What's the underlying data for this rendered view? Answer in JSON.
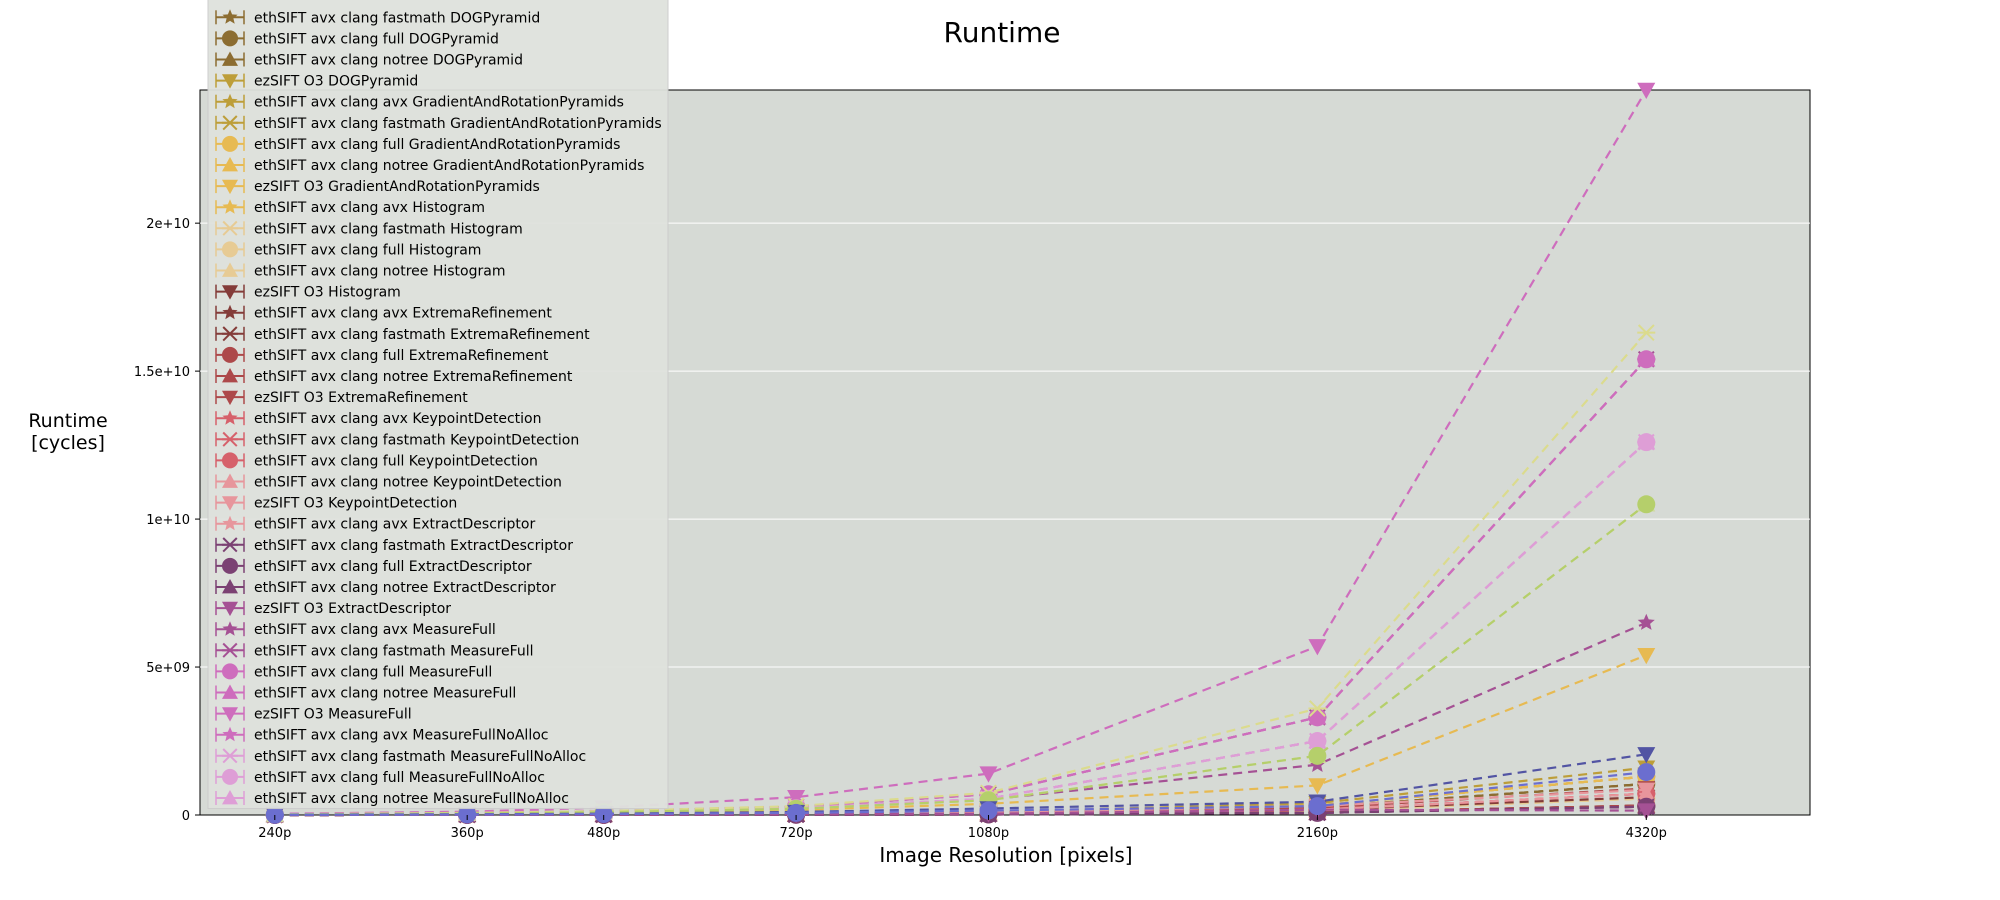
{
  "chart_data": {
    "type": "line",
    "title": "Runtime",
    "xlabel": "Image Resolution [pixels]",
    "ylabel_lines": [
      "Runtime",
      "[cycles]"
    ],
    "x_categories": [
      "240p",
      "360p",
      "480p",
      "720p",
      "1080p",
      "2160p",
      "4320p"
    ],
    "x_scale": "log",
    "x_values": [
      240,
      360,
      480,
      720,
      1080,
      2160,
      4320
    ],
    "y_ticks": [
      0,
      5000000000,
      10000000000,
      15000000000,
      20000000000
    ],
    "y_tick_labels": [
      "0",
      "5e+09",
      "1e+10",
      "1.5e+10",
      "2e+10"
    ],
    "ylim": [
      0,
      24500000000
    ],
    "grid": true,
    "legend_position": "upper-left",
    "legend_partially_cut_off_at_top": true,
    "series": [
      {
        "name": "ethSIFT avx clang fastmath DOGPyramid",
        "color": "#8c6d31",
        "marker": "star",
        "values": [
          3000000,
          7000000,
          13000000,
          30000000,
          65000000,
          260000000,
          1050000000
        ]
      },
      {
        "name": "ethSIFT avx clang full DOGPyramid",
        "color": "#8c6d31",
        "marker": "circle",
        "values": [
          3000000,
          7000000,
          13000000,
          30000000,
          65000000,
          260000000,
          1050000000
        ]
      },
      {
        "name": "ethSIFT avx clang notree DOGPyramid",
        "color": "#8c6d31",
        "marker": "triangle-up",
        "values": [
          3000000,
          7000000,
          13000000,
          30000000,
          65000000,
          260000000,
          1050000000
        ]
      },
      {
        "name": "ezSIFT O3 DOGPyramid",
        "color": "#bd9e39",
        "marker": "triangle-down",
        "values": [
          5000000,
          12000000,
          20000000,
          45000000,
          100000000,
          400000000,
          1600000000
        ]
      },
      {
        "name": "ethSIFT avx clang avx GradientAndRotationPyramids",
        "color": "#bd9e39",
        "marker": "star",
        "values": [
          4000000,
          9000000,
          16000000,
          35000000,
          80000000,
          320000000,
          1300000000
        ]
      },
      {
        "name": "ethSIFT avx clang fastmath GradientAndRotationPyramids",
        "color": "#bd9e39",
        "marker": "x",
        "values": [
          4000000,
          9000000,
          16000000,
          35000000,
          80000000,
          320000000,
          1300000000
        ]
      },
      {
        "name": "ethSIFT avx clang full GradientAndRotationPyramids",
        "color": "#e7ba52",
        "marker": "circle",
        "values": [
          4000000,
          9000000,
          16000000,
          35000000,
          80000000,
          320000000,
          1300000000
        ]
      },
      {
        "name": "ethSIFT avx clang notree GradientAndRotationPyramids",
        "color": "#e7ba52",
        "marker": "triangle-up",
        "values": [
          4000000,
          9000000,
          16000000,
          35000000,
          80000000,
          320000000,
          1300000000
        ]
      },
      {
        "name": "ezSIFT O3 GradientAndRotationPyramids",
        "color": "#e7ba52",
        "marker": "triangle-down",
        "values": [
          18000000,
          42000000,
          75000000,
          170000000,
          380000000,
          1000000000,
          5400000000
        ]
      },
      {
        "name": "ethSIFT avx clang avx Histogram",
        "color": "#e7ba52",
        "marker": "star",
        "values": [
          2000000,
          4000000,
          7000000,
          16000000,
          35000000,
          140000000,
          560000000
        ]
      },
      {
        "name": "ethSIFT avx clang fastmath Histogram",
        "color": "#e7cb94",
        "marker": "x",
        "values": [
          2000000,
          4000000,
          7000000,
          16000000,
          35000000,
          140000000,
          560000000
        ]
      },
      {
        "name": "ethSIFT avx clang full Histogram",
        "color": "#e7cb94",
        "marker": "circle",
        "values": [
          2000000,
          4000000,
          7000000,
          16000000,
          35000000,
          140000000,
          560000000
        ]
      },
      {
        "name": "ethSIFT avx clang notree Histogram",
        "color": "#e7cb94",
        "marker": "triangle-up",
        "values": [
          2000000,
          4000000,
          7000000,
          16000000,
          35000000,
          140000000,
          560000000
        ]
      },
      {
        "name": "ezSIFT O3 Histogram",
        "color": "#843c39",
        "marker": "triangle-down",
        "values": [
          4000000,
          9000000,
          16000000,
          36000000,
          80000000,
          180000000,
          600000000
        ]
      },
      {
        "name": "ethSIFT avx clang avx ExtremaRefinement",
        "color": "#843c39",
        "marker": "star",
        "values": [
          1000000,
          2000000,
          4000000,
          9000000,
          20000000,
          80000000,
          320000000
        ]
      },
      {
        "name": "ethSIFT avx clang fastmath ExtremaRefinement",
        "color": "#843c39",
        "marker": "x",
        "values": [
          1000000,
          2000000,
          4000000,
          9000000,
          20000000,
          80000000,
          320000000
        ]
      },
      {
        "name": "ethSIFT avx clang full ExtremaRefinement",
        "color": "#ad494a",
        "marker": "circle",
        "values": [
          1000000,
          2000000,
          4000000,
          9000000,
          20000000,
          80000000,
          320000000
        ]
      },
      {
        "name": "ethSIFT avx clang notree ExtremaRefinement",
        "color": "#ad494a",
        "marker": "triangle-up",
        "values": [
          1000000,
          2000000,
          4000000,
          9000000,
          20000000,
          80000000,
          320000000
        ]
      },
      {
        "name": "ezSIFT O3 ExtremaRefinement",
        "color": "#ad494a",
        "marker": "triangle-down",
        "values": [
          3000000,
          7000000,
          12000000,
          28000000,
          60000000,
          240000000,
          900000000
        ]
      },
      {
        "name": "ethSIFT avx clang avx KeypointDetection",
        "color": "#d6616b",
        "marker": "star",
        "values": [
          2000000,
          5000000,
          9000000,
          20000000,
          45000000,
          180000000,
          720000000
        ]
      },
      {
        "name": "ethSIFT avx clang fastmath KeypointDetection",
        "color": "#d6616b",
        "marker": "x",
        "values": [
          2000000,
          5000000,
          9000000,
          20000000,
          45000000,
          180000000,
          720000000
        ]
      },
      {
        "name": "ethSIFT avx clang full KeypointDetection",
        "color": "#d6616b",
        "marker": "circle",
        "values": [
          2000000,
          5000000,
          9000000,
          20000000,
          45000000,
          180000000,
          720000000
        ]
      },
      {
        "name": "ethSIFT avx clang notree KeypointDetection",
        "color": "#e7969c",
        "marker": "triangle-up",
        "values": [
          2000000,
          5000000,
          9000000,
          20000000,
          45000000,
          180000000,
          720000000
        ]
      },
      {
        "name": "ezSIFT O3 KeypointDetection",
        "color": "#e7969c",
        "marker": "triangle-down",
        "values": [
          4000000,
          9000000,
          16000000,
          36000000,
          80000000,
          300000000,
          850000000
        ]
      },
      {
        "name": "ethSIFT avx clang avx ExtractDescriptor",
        "color": "#e7969c",
        "marker": "star",
        "values": [
          1000000,
          2000000,
          4000000,
          8000000,
          18000000,
          70000000,
          280000000
        ]
      },
      {
        "name": "ethSIFT avx clang fastmath ExtractDescriptor",
        "color": "#7b4173",
        "marker": "x",
        "values": [
          1000000,
          2000000,
          4000000,
          8000000,
          18000000,
          70000000,
          280000000
        ]
      },
      {
        "name": "ethSIFT avx clang full ExtractDescriptor",
        "color": "#7b4173",
        "marker": "circle",
        "values": [
          1000000,
          2000000,
          4000000,
          8000000,
          18000000,
          70000000,
          280000000
        ]
      },
      {
        "name": "ethSIFT avx clang notree ExtractDescriptor",
        "color": "#7b4173",
        "marker": "triangle-up",
        "values": [
          1000000,
          2000000,
          4000000,
          8000000,
          18000000,
          70000000,
          280000000
        ]
      },
      {
        "name": "ezSIFT O3 ExtractDescriptor",
        "color": "#a55194",
        "marker": "triangle-down",
        "values": [
          2000000,
          5000000,
          9000000,
          20000000,
          45000000,
          180000000,
          150000000
        ]
      },
      {
        "name": "ethSIFT avx clang avx MeasureFull",
        "color": "#a55194",
        "marker": "star",
        "values": [
          20000000,
          60000000,
          110000000,
          240000000,
          520000000,
          1700000000,
          6500000000
        ]
      },
      {
        "name": "ethSIFT avx clang fastmath MeasureFull",
        "color": "#a55194",
        "marker": "x",
        "values": [
          25000000,
          70000000,
          130000000,
          280000000,
          700000000,
          3300000000,
          15400000000
        ]
      },
      {
        "name": "ethSIFT avx clang full MeasureFull",
        "color": "#ce6dbd",
        "marker": "circle",
        "values": [
          25000000,
          70000000,
          130000000,
          280000000,
          700000000,
          3300000000,
          15400000000
        ]
      },
      {
        "name": "ethSIFT avx clang notree MeasureFull",
        "color": "#ce6dbd",
        "marker": "triangle-up",
        "values": [
          25000000,
          70000000,
          130000000,
          280000000,
          700000000,
          3300000000,
          15400000000
        ]
      },
      {
        "name": "ezSIFT O3 MeasureFull",
        "color": "#ce6dbd",
        "marker": "triangle-down",
        "values": [
          40000000,
          110000000,
          250000000,
          600000000,
          1400000000,
          5700000000,
          24500000000
        ]
      },
      {
        "name": "ethSIFT avx clang avx MeasureFullNoAlloc",
        "color": "#ce6dbd",
        "marker": "star",
        "values": [
          20000000,
          55000000,
          100000000,
          230000000,
          550000000,
          2500000000,
          12600000000
        ]
      },
      {
        "name": "ethSIFT avx clang fastmath MeasureFullNoAlloc",
        "color": "#de9ed6",
        "marker": "x",
        "values": [
          20000000,
          55000000,
          100000000,
          230000000,
          550000000,
          2500000000,
          12600000000
        ]
      },
      {
        "name": "ethSIFT avx clang full MeasureFullNoAlloc",
        "color": "#de9ed6",
        "marker": "circle",
        "values": [
          20000000,
          55000000,
          100000000,
          230000000,
          550000000,
          2500000000,
          12600000000
        ]
      },
      {
        "name": "ethSIFT avx clang notree MeasureFullNoAlloc",
        "color": "#de9ed6",
        "marker": "triangle-up",
        "values": [
          20000000,
          55000000,
          100000000,
          230000000,
          550000000,
          2500000000,
          12600000000
        ]
      }
    ],
    "extra_lines_not_in_visible_legend": [
      {
        "color": "#dbdb8d",
        "marker": "x",
        "values": [
          25000000,
          70000000,
          130000000,
          300000000,
          750000000,
          3600000000,
          16300000000
        ]
      },
      {
        "color": "#cedb9c",
        "marker": "triangle-up",
        "values": [
          18000000,
          50000000,
          95000000,
          210000000,
          500000000,
          2000000000,
          10500000000
        ]
      },
      {
        "color": "#b5cf6b",
        "marker": "circle",
        "values": [
          18000000,
          50000000,
          95000000,
          210000000,
          500000000,
          2000000000,
          10500000000
        ]
      },
      {
        "color": "#5254a3",
        "marker": "triangle-down",
        "values": [
          10000000,
          25000000,
          45000000,
          100000000,
          220000000,
          450000000,
          2050000000
        ]
      },
      {
        "color": "#6b6ecf",
        "marker": "circle",
        "values": [
          8000000,
          18000000,
          32000000,
          70000000,
          150000000,
          300000000,
          1450000000
        ]
      }
    ]
  }
}
